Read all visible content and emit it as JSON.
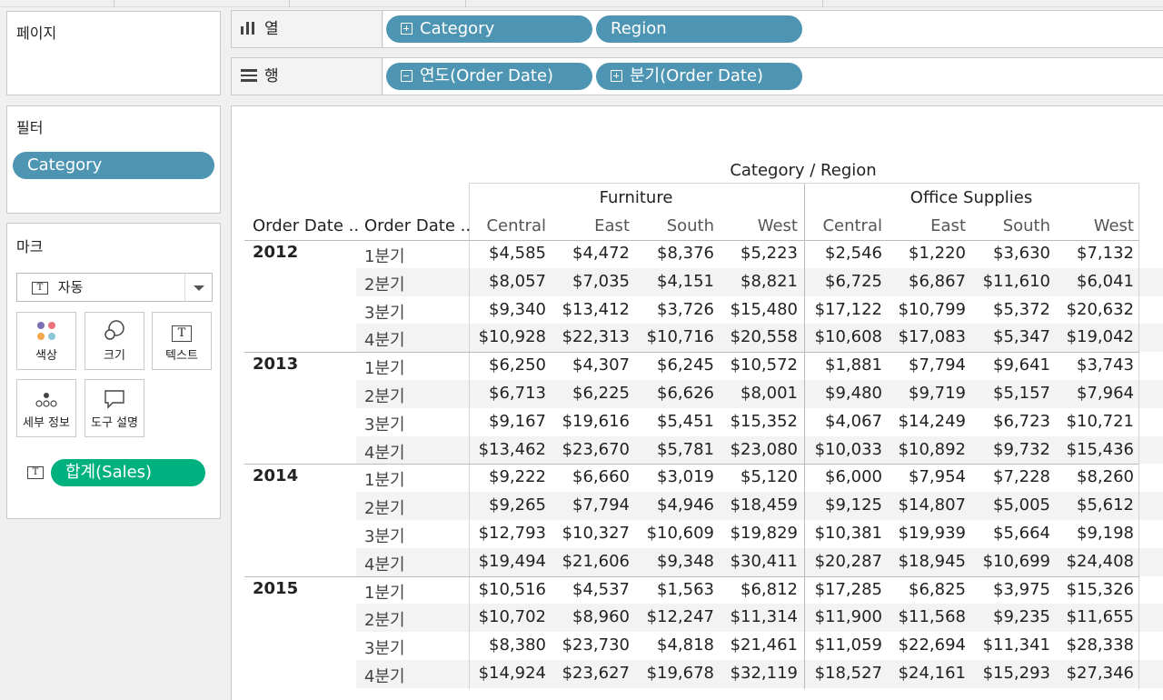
{
  "pages_panel": {
    "title": "페이지"
  },
  "columns_shelf": {
    "label": "열",
    "pills": [
      {
        "label": "Category",
        "has_plus": true,
        "expanded": false
      },
      {
        "label": "Region",
        "has_plus": false
      }
    ]
  },
  "rows_shelf": {
    "label": "행",
    "pills": [
      {
        "label": "연도(Order Date)",
        "has_plus": true,
        "expanded": true
      },
      {
        "label": "분기(Order Date)",
        "has_plus": true,
        "expanded": false
      }
    ]
  },
  "filters_panel": {
    "title": "필터",
    "pill": "Category"
  },
  "marks_panel": {
    "title": "마크",
    "type_select": "자동",
    "buttons": [
      "색상",
      "크기",
      "텍스트",
      "세부 정보",
      "도구 설명"
    ],
    "measure_pill": "합계(Sales)"
  },
  "table": {
    "title": "Category / Region",
    "row_headers": [
      "Order Date ..",
      "Order Date .."
    ],
    "categories": [
      "Furniture",
      "Office Supplies"
    ],
    "regions": [
      "Central",
      "East",
      "South",
      "West"
    ],
    "years": [
      {
        "year": "2012",
        "rows": [
          {
            "q": "1분기",
            "v": [
              "$4,585",
              "$4,472",
              "$8,376",
              "$5,223",
              "$2,546",
              "$1,220",
              "$3,630",
              "$7,132"
            ]
          },
          {
            "q": "2분기",
            "v": [
              "$8,057",
              "$7,035",
              "$4,151",
              "$8,821",
              "$6,725",
              "$6,867",
              "$11,610",
              "$6,041"
            ]
          },
          {
            "q": "3분기",
            "v": [
              "$9,340",
              "$13,412",
              "$3,726",
              "$15,480",
              "$17,122",
              "$10,799",
              "$5,372",
              "$20,632"
            ]
          },
          {
            "q": "4분기",
            "v": [
              "$10,928",
              "$22,313",
              "$10,716",
              "$20,558",
              "$10,608",
              "$17,083",
              "$5,347",
              "$19,042"
            ]
          }
        ]
      },
      {
        "year": "2013",
        "rows": [
          {
            "q": "1분기",
            "v": [
              "$6,250",
              "$4,307",
              "$6,245",
              "$10,572",
              "$1,881",
              "$7,794",
              "$9,641",
              "$3,743"
            ]
          },
          {
            "q": "2분기",
            "v": [
              "$6,713",
              "$6,225",
              "$6,626",
              "$8,001",
              "$9,480",
              "$9,719",
              "$5,157",
              "$7,964"
            ]
          },
          {
            "q": "3분기",
            "v": [
              "$9,167",
              "$19,616",
              "$5,451",
              "$15,352",
              "$4,067",
              "$14,249",
              "$6,723",
              "$10,721"
            ]
          },
          {
            "q": "4분기",
            "v": [
              "$13,462",
              "$23,670",
              "$5,781",
              "$23,080",
              "$10,033",
              "$10,892",
              "$9,732",
              "$15,436"
            ]
          }
        ]
      },
      {
        "year": "2014",
        "rows": [
          {
            "q": "1분기",
            "v": [
              "$9,222",
              "$6,660",
              "$3,019",
              "$5,120",
              "$6,000",
              "$7,954",
              "$7,228",
              "$8,260"
            ]
          },
          {
            "q": "2분기",
            "v": [
              "$9,265",
              "$7,794",
              "$4,946",
              "$18,459",
              "$9,125",
              "$14,807",
              "$5,005",
              "$5,612"
            ]
          },
          {
            "q": "3분기",
            "v": [
              "$12,793",
              "$10,327",
              "$10,609",
              "$19,829",
              "$10,381",
              "$19,939",
              "$5,664",
              "$9,198"
            ]
          },
          {
            "q": "4분기",
            "v": [
              "$19,494",
              "$21,606",
              "$9,348",
              "$30,411",
              "$20,287",
              "$18,945",
              "$10,699",
              "$24,408"
            ]
          }
        ]
      },
      {
        "year": "2015",
        "rows": [
          {
            "q": "1분기",
            "v": [
              "$10,516",
              "$4,537",
              "$1,563",
              "$6,812",
              "$17,285",
              "$6,825",
              "$3,975",
              "$15,326"
            ]
          },
          {
            "q": "2분기",
            "v": [
              "$10,702",
              "$8,960",
              "$12,247",
              "$11,314",
              "$11,900",
              "$11,568",
              "$9,235",
              "$11,655"
            ]
          },
          {
            "q": "3분기",
            "v": [
              "$8,380",
              "$23,730",
              "$4,818",
              "$21,461",
              "$11,059",
              "$22,694",
              "$11,341",
              "$28,338"
            ]
          },
          {
            "q": "4분기",
            "v": [
              "$14,924",
              "$23,627",
              "$19,678",
              "$32,119",
              "$18,527",
              "$24,161",
              "$15,293",
              "$27,346"
            ]
          }
        ]
      }
    ]
  },
  "colors": {
    "pill_blue": "#4e95b3",
    "pill_green": "#00b180",
    "band": "#f3f3f3",
    "line": "#cccccc"
  }
}
